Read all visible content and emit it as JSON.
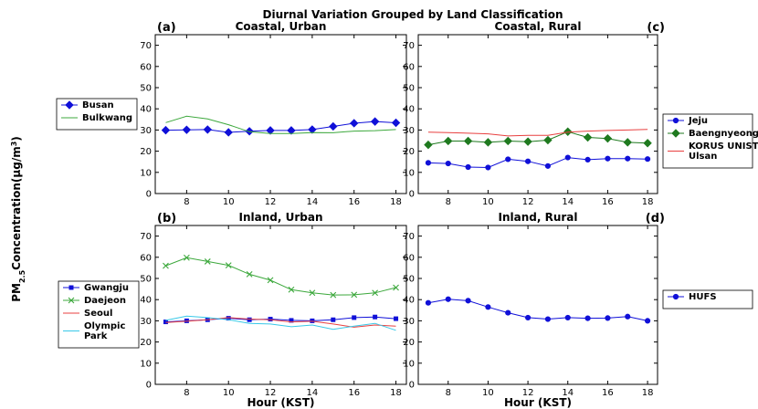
{
  "figure": {
    "title": "Diurnal Variation Grouped by Land Classification",
    "ylabel_main": "PM",
    "ylabel_sub": "2.5",
    "ylabel_rest": "Concentration(μg/m",
    "ylabel_sup": "3",
    "ylabel_end": ")"
  },
  "colors": {
    "blue": "#1010d8",
    "green": "#3ca83c",
    "darkgreen": "#1f7a1f",
    "red": "#e84040",
    "cyan": "#38c8e8"
  },
  "chart_data": [
    {
      "type": "line",
      "panel": "(a)",
      "title": "Coastal, Urban",
      "xlabel": "",
      "xlim": [
        6.5,
        18.5
      ],
      "ylim": [
        0,
        75
      ],
      "xticks": [
        8,
        10,
        12,
        14,
        16,
        18
      ],
      "yticks": [
        0,
        10,
        20,
        30,
        40,
        50,
        60,
        70
      ],
      "legend_position": "outside-left",
      "series": [
        {
          "name": "Busan",
          "color": "#1010d8",
          "marker": "diamond",
          "x": [
            7,
            8,
            9,
            10,
            11,
            12,
            13,
            14,
            15,
            16,
            17,
            18
          ],
          "y": [
            29.9,
            30.1,
            30.2,
            28.9,
            29.4,
            29.8,
            29.8,
            30.2,
            31.7,
            33.2,
            34.0,
            33.4
          ]
        },
        {
          "name": "Bulkwang",
          "color": "#3ca83c",
          "marker": "none",
          "x": [
            7,
            8,
            9,
            10,
            11,
            12,
            13,
            14,
            15,
            16,
            17,
            18
          ],
          "y": [
            33.5,
            36.5,
            35.2,
            32.5,
            29.2,
            28.3,
            28.3,
            28.8,
            28.7,
            29.5,
            29.7,
            30.2
          ]
        }
      ]
    },
    {
      "type": "line",
      "panel": "(c)",
      "title": "Coastal, Rural",
      "xlabel": "",
      "xlim": [
        6.5,
        18.5
      ],
      "ylim": [
        0,
        75
      ],
      "xticks": [
        8,
        10,
        12,
        14,
        16,
        18
      ],
      "yticks": [
        0,
        10,
        20,
        30,
        40,
        50,
        60,
        70
      ],
      "legend_position": "outside-right",
      "series": [
        {
          "name": "Jeju",
          "color": "#1010d8",
          "marker": "circle",
          "x": [
            7,
            8,
            9,
            10,
            11,
            12,
            13,
            14,
            15,
            16,
            17,
            18
          ],
          "y": [
            14.5,
            14.2,
            12.5,
            12.3,
            16.2,
            15.2,
            13.0,
            17.0,
            16.0,
            16.5,
            16.5,
            16.3
          ]
        },
        {
          "name": "Baengnyeong",
          "color": "#1f7a1f",
          "marker": "diamond",
          "x": [
            7,
            8,
            9,
            10,
            11,
            12,
            13,
            14,
            15,
            16,
            17,
            18
          ],
          "y": [
            23.0,
            24.8,
            24.8,
            24.2,
            24.8,
            24.5,
            25.2,
            29.2,
            26.5,
            26.0,
            24.2,
            23.8
          ]
        },
        {
          "name": "KORUS UNIST Ulsan",
          "color": "#e84040",
          "marker": "none",
          "x": [
            7,
            8,
            9,
            10,
            11,
            12,
            13,
            14,
            15,
            16,
            17,
            18
          ],
          "y": [
            29.0,
            28.8,
            28.5,
            28.2,
            27.2,
            27.5,
            27.5,
            29.0,
            29.5,
            29.8,
            30.0,
            30.3
          ]
        }
      ]
    },
    {
      "type": "line",
      "panel": "(b)",
      "title": "Inland, Urban",
      "xlabel": "Hour (KST)",
      "xlim": [
        6.5,
        18.5
      ],
      "ylim": [
        0,
        75
      ],
      "xticks": [
        8,
        10,
        12,
        14,
        16,
        18
      ],
      "yticks": [
        0,
        10,
        20,
        30,
        40,
        50,
        60,
        70
      ],
      "legend_position": "outside-left",
      "series": [
        {
          "name": "Gwangju",
          "color": "#1010d8",
          "marker": "square",
          "x": [
            7,
            8,
            9,
            10,
            11,
            12,
            13,
            14,
            15,
            16,
            17,
            18
          ],
          "y": [
            29.5,
            30.0,
            30.5,
            31.2,
            30.5,
            30.8,
            30.2,
            30.0,
            30.5,
            31.5,
            31.8,
            31.0
          ]
        },
        {
          "name": "Daejeon",
          "color": "#3ca83c",
          "marker": "x",
          "x": [
            7,
            8,
            9,
            10,
            11,
            12,
            13,
            14,
            15,
            16,
            17,
            18
          ],
          "y": [
            56.0,
            59.8,
            58.0,
            56.2,
            52.0,
            49.2,
            44.7,
            43.2,
            42.2,
            42.3,
            43.2,
            45.7
          ]
        },
        {
          "name": "Seoul",
          "color": "#e84040",
          "marker": "none",
          "x": [
            7,
            8,
            9,
            10,
            11,
            12,
            13,
            14,
            15,
            16,
            17,
            18
          ],
          "y": [
            29.2,
            29.8,
            30.5,
            31.5,
            30.8,
            30.5,
            29.5,
            29.8,
            28.5,
            27.0,
            28.0,
            27.5
          ]
        },
        {
          "name": "Olympic Park",
          "color": "#38c8e8",
          "marker": "none",
          "x": [
            7,
            8,
            9,
            10,
            11,
            12,
            13,
            14,
            15,
            16,
            17,
            18
          ],
          "y": [
            30.2,
            32.2,
            31.5,
            30.5,
            28.8,
            28.5,
            27.2,
            28.0,
            26.0,
            27.5,
            28.8,
            25.5
          ]
        }
      ]
    },
    {
      "type": "line",
      "panel": "(d)",
      "title": "Inland, Rural",
      "xlabel": "Hour (KST)",
      "xlim": [
        6.5,
        18.5
      ],
      "ylim": [
        0,
        75
      ],
      "xticks": [
        8,
        10,
        12,
        14,
        16,
        18
      ],
      "yticks": [
        0,
        10,
        20,
        30,
        40,
        50,
        60,
        70
      ],
      "legend_position": "outside-right",
      "series": [
        {
          "name": "HUFS",
          "color": "#1010d8",
          "marker": "circle",
          "x": [
            7,
            8,
            9,
            10,
            11,
            12,
            13,
            14,
            15,
            16,
            17,
            18
          ],
          "y": [
            38.5,
            40.2,
            39.5,
            36.5,
            33.8,
            31.5,
            30.8,
            31.5,
            31.2,
            31.3,
            32.0,
            30.0
          ]
        }
      ]
    }
  ]
}
